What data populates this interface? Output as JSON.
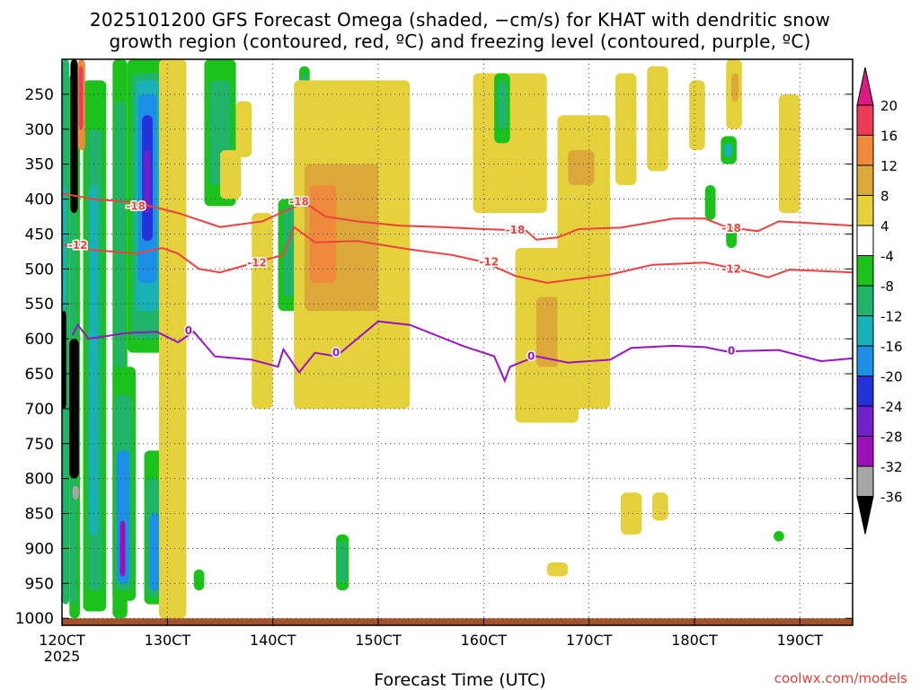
{
  "chart_data": {
    "type": "heatmap",
    "title_line1": "2025101200 GFS Forecast Omega (shaded, −cm/s) for KHAT with dendritic snow",
    "title_line2": "growth region (contoured, red, ºC) and freezing level (contoured, purple, ºC)",
    "xlabel": "Forecast Time (UTC)",
    "x_ticks": [
      {
        "day": 12,
        "label": "120CT"
      },
      {
        "day": 13,
        "label": "130CT"
      },
      {
        "day": 14,
        "label": "140CT"
      },
      {
        "day": 15,
        "label": "150CT"
      },
      {
        "day": 16,
        "label": "160CT"
      },
      {
        "day": 17,
        "label": "170CT"
      },
      {
        "day": 18,
        "label": "180CT"
      },
      {
        "day": 19,
        "label": "190CT"
      }
    ],
    "x_year_label": "2025",
    "xlim": [
      12,
      19.5
    ],
    "y_ticks": [
      250,
      300,
      350,
      400,
      450,
      500,
      550,
      600,
      650,
      700,
      750,
      800,
      850,
      900,
      950,
      1000
    ],
    "ylim": [
      1010,
      200
    ],
    "colorbar": {
      "labels": [
        "20",
        "16",
        "12",
        "8",
        "4",
        "-4",
        "-8",
        "-12",
        "-16",
        "-20",
        "-24",
        "-28",
        "-32",
        "-36"
      ],
      "colors": [
        "#ec3c55",
        "#ef8a3c",
        "#dda83a",
        "#e5d13c",
        "#ffffff",
        "#1bc21b",
        "#20b36a",
        "#18b1b8",
        "#1c8fe6",
        "#2430d8",
        "#7020c8",
        "#9c10b8",
        "#a6a6a6",
        "#000000"
      ],
      "top_arrow": "#dc1a84",
      "bottom_arrow": "#000000"
    },
    "dendritic_minus18": {
      "color": "#ef4040",
      "points": [
        [
          12.0,
          392
        ],
        [
          12.3,
          400
        ],
        [
          12.7,
          405
        ],
        [
          13.1,
          420
        ],
        [
          13.5,
          440
        ],
        [
          13.9,
          432
        ],
        [
          14.1,
          418
        ],
        [
          14.3,
          405
        ],
        [
          14.5,
          425
        ],
        [
          14.8,
          432
        ],
        [
          15.2,
          438
        ],
        [
          15.6,
          440
        ],
        [
          16.0,
          443
        ],
        [
          16.4,
          445
        ],
        [
          16.5,
          458
        ],
        [
          16.7,
          455
        ],
        [
          16.9,
          443
        ],
        [
          17.3,
          441
        ],
        [
          17.8,
          428
        ],
        [
          18.1,
          428
        ],
        [
          18.3,
          440
        ],
        [
          18.6,
          446
        ],
        [
          18.8,
          432
        ],
        [
          19.5,
          438
        ]
      ],
      "labels": [
        {
          "x": 12.7,
          "p": 410,
          "text": "-18"
        },
        {
          "x": 14.25,
          "p": 404,
          "text": "-18"
        },
        {
          "x": 16.3,
          "p": 444,
          "text": "-18"
        },
        {
          "x": 18.35,
          "p": 442,
          "text": "-18"
        }
      ]
    },
    "dendritic_minus12": {
      "color": "#ef4040",
      "points": [
        [
          12.0,
          465
        ],
        [
          12.3,
          473
        ],
        [
          12.7,
          478
        ],
        [
          12.95,
          470
        ],
        [
          13.1,
          478
        ],
        [
          13.3,
          500
        ],
        [
          13.5,
          505
        ],
        [
          13.9,
          488
        ],
        [
          14.1,
          480
        ],
        [
          14.2,
          440
        ],
        [
          14.4,
          462
        ],
        [
          14.8,
          460
        ],
        [
          15.3,
          472
        ],
        [
          15.7,
          480
        ],
        [
          16.0,
          490
        ],
        [
          16.3,
          510
        ],
        [
          16.6,
          520
        ],
        [
          16.9,
          514
        ],
        [
          17.2,
          508
        ],
        [
          17.6,
          494
        ],
        [
          18.1,
          491
        ],
        [
          18.4,
          500
        ],
        [
          18.7,
          512
        ],
        [
          18.9,
          501
        ],
        [
          19.5,
          505
        ]
      ],
      "labels": [
        {
          "x": 12.15,
          "p": 466,
          "text": "-12"
        },
        {
          "x": 13.85,
          "p": 491,
          "text": "-12"
        },
        {
          "x": 16.05,
          "p": 490,
          "text": "-12"
        },
        {
          "x": 18.35,
          "p": 500,
          "text": "-12"
        }
      ]
    },
    "freezing_level": {
      "color": "#9a14c4",
      "points": [
        [
          12.1,
          595
        ],
        [
          12.15,
          580
        ],
        [
          12.25,
          600
        ],
        [
          12.6,
          592
        ],
        [
          12.9,
          590
        ],
        [
          13.1,
          605
        ],
        [
          13.25,
          590
        ],
        [
          13.45,
          625
        ],
        [
          13.8,
          630
        ],
        [
          14.05,
          640
        ],
        [
          14.1,
          615
        ],
        [
          14.25,
          648
        ],
        [
          14.4,
          620
        ],
        [
          14.6,
          625
        ],
        [
          15.0,
          575
        ],
        [
          15.3,
          580
        ],
        [
          15.8,
          610
        ],
        [
          16.1,
          625
        ],
        [
          16.2,
          660
        ],
        [
          16.25,
          640
        ],
        [
          16.5,
          625
        ],
        [
          16.8,
          634
        ],
        [
          17.2,
          630
        ],
        [
          17.4,
          613
        ],
        [
          17.8,
          610
        ],
        [
          18.1,
          612
        ],
        [
          18.3,
          618
        ],
        [
          18.8,
          616
        ],
        [
          19.2,
          632
        ],
        [
          19.5,
          628
        ]
      ],
      "labels": [
        {
          "x": 13.2,
          "p": 588,
          "text": "0"
        },
        {
          "x": 14.6,
          "p": 620,
          "text": "0"
        },
        {
          "x": 16.45,
          "p": 625,
          "text": "0"
        },
        {
          "x": 18.35,
          "p": 617,
          "text": "0"
        }
      ]
    }
  },
  "credit": "coolwx.com/models"
}
